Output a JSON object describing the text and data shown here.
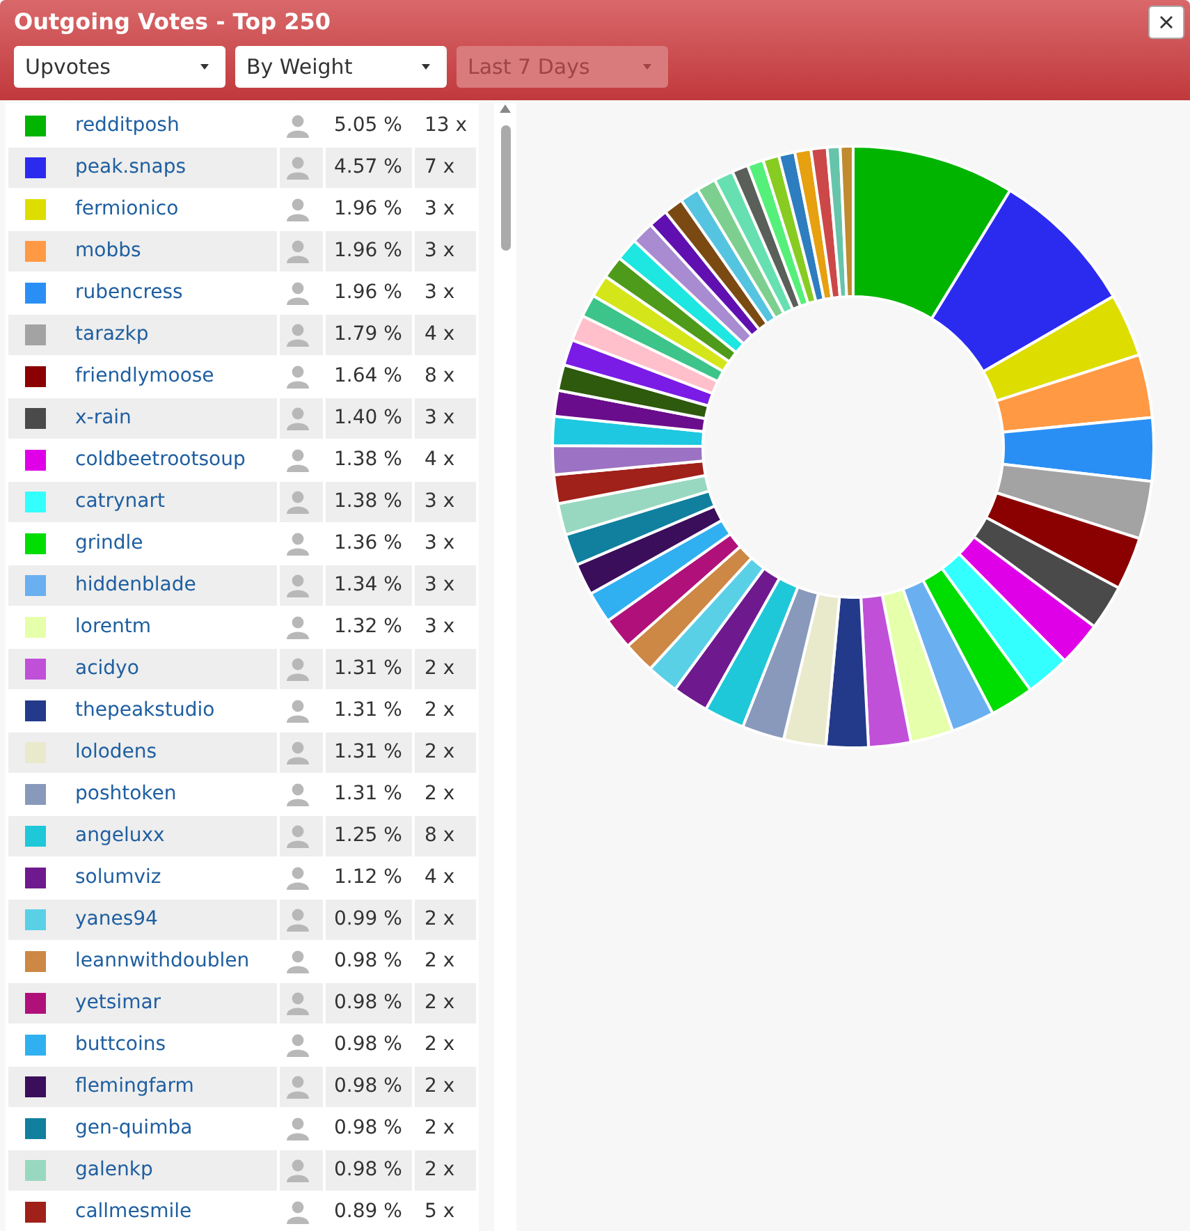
{
  "chart_data": {
    "type": "donut",
    "title": "Outgoing Votes - Top 250",
    "categories": [
      "redditposh",
      "peak.snaps",
      "fermionico",
      "mobbs",
      "rubencress",
      "tarazkp",
      "friendlymoose",
      "x-rain",
      "coldbeetrootsoup",
      "catrynart",
      "grindle",
      "hiddenblade",
      "lorentm",
      "acidyo",
      "thepeakstudio",
      "lolodens",
      "poshtoken",
      "angeluxx",
      "solumviz",
      "yanes94",
      "leannwithdoublen",
      "yetsimar",
      "buttcoins",
      "flemingfarm",
      "gen-quimba",
      "galenkp",
      "callmesmile",
      null,
      null,
      null,
      null,
      null,
      null,
      null,
      null,
      null,
      null,
      null,
      null,
      null,
      null,
      null,
      null,
      null,
      null,
      null,
      null,
      null,
      null,
      null,
      null
    ],
    "values": [
      5.05,
      4.57,
      1.96,
      1.96,
      1.96,
      1.79,
      1.64,
      1.4,
      1.38,
      1.38,
      1.36,
      1.34,
      1.32,
      1.31,
      1.31,
      1.31,
      1.31,
      1.25,
      1.12,
      0.99,
      0.98,
      0.98,
      0.98,
      0.98,
      0.98,
      0.98,
      0.89,
      0.9,
      0.9,
      0.8,
      0.8,
      0.8,
      0.8,
      0.7,
      0.7,
      0.7,
      0.7,
      0.7,
      0.6,
      0.6,
      0.6,
      0.6,
      0.6,
      0.5,
      0.5,
      0.5,
      0.5,
      0.5,
      0.5,
      0.4,
      0.4
    ],
    "value_labels": [
      "5.05 %",
      "4.57 %",
      "1.96 %",
      "1.96 %",
      "1.96 %",
      "1.79 %",
      "1.64 %",
      "1.40 %",
      "1.38 %",
      "1.38 %",
      "1.36 %",
      "1.34 %",
      "1.32 %",
      "1.31 %",
      "1.31 %",
      "1.31 %",
      "1.31 %",
      "1.25 %",
      "1.12 %",
      "0.99 %",
      "0.98 %",
      "0.98 %",
      "0.98 %",
      "0.98 %",
      "0.98 %",
      "0.98 %",
      "0.89 %",
      null,
      null,
      null,
      null,
      null,
      null,
      null,
      null,
      null,
      null,
      null,
      null,
      null,
      null,
      null,
      null,
      null,
      null,
      null,
      null,
      null,
      null,
      null,
      null
    ],
    "colors": [
      "#00b400",
      "#2b2bf0",
      "#dddd00",
      "#ff9944",
      "#2a8ff5",
      "#a3a3a3",
      "#8b0000",
      "#4a4a4a",
      "#e000e8",
      "#33ffff",
      "#00dd00",
      "#6aaff0",
      "#e6ffaa",
      "#c050d8",
      "#233a8a",
      "#e9e9cc",
      "#8899bb",
      "#1ec8d8",
      "#6e1a8e",
      "#5ad0e6",
      "#cc8844",
      "#b0107a",
      "#30b0f0",
      "#3a0e5a",
      "#10809e",
      "#99d8c0",
      "#a0201a",
      "#9b72c4",
      "#1ec8e0",
      "#6a0d8c",
      "#2d5a0c",
      "#7a1be6",
      "#ffc0cb",
      "#3cc48a",
      "#d4e61a",
      "#4e9a1a",
      "#1ee6e0",
      "#a88bd0",
      "#6010b0",
      "#7a4a12",
      "#55c4e0",
      "#7ccf8e",
      "#66e0b0",
      "#5a5f5a",
      "#55f07a",
      "#88cc22",
      "#2e7dc0",
      "#e6a010",
      "#cc4848",
      "#66c4aa",
      "#c08a30"
    ],
    "legend": "left",
    "annotations": [
      "Upvotes",
      "By Weight",
      "Last 7 Days",
      "13 x",
      "7 x",
      "3 x",
      "3 x",
      "3 x",
      "4 x",
      "8 x",
      "3 x",
      "4 x",
      "3 x",
      "3 x",
      "3 x",
      "3 x",
      "2 x",
      "2 x",
      "2 x",
      "2 x",
      "8 x",
      "4 x",
      "2 x",
      "2 x",
      "2 x",
      "2 x",
      "2 x",
      "2 x",
      "2 x",
      "5 x"
    ]
  }
}
